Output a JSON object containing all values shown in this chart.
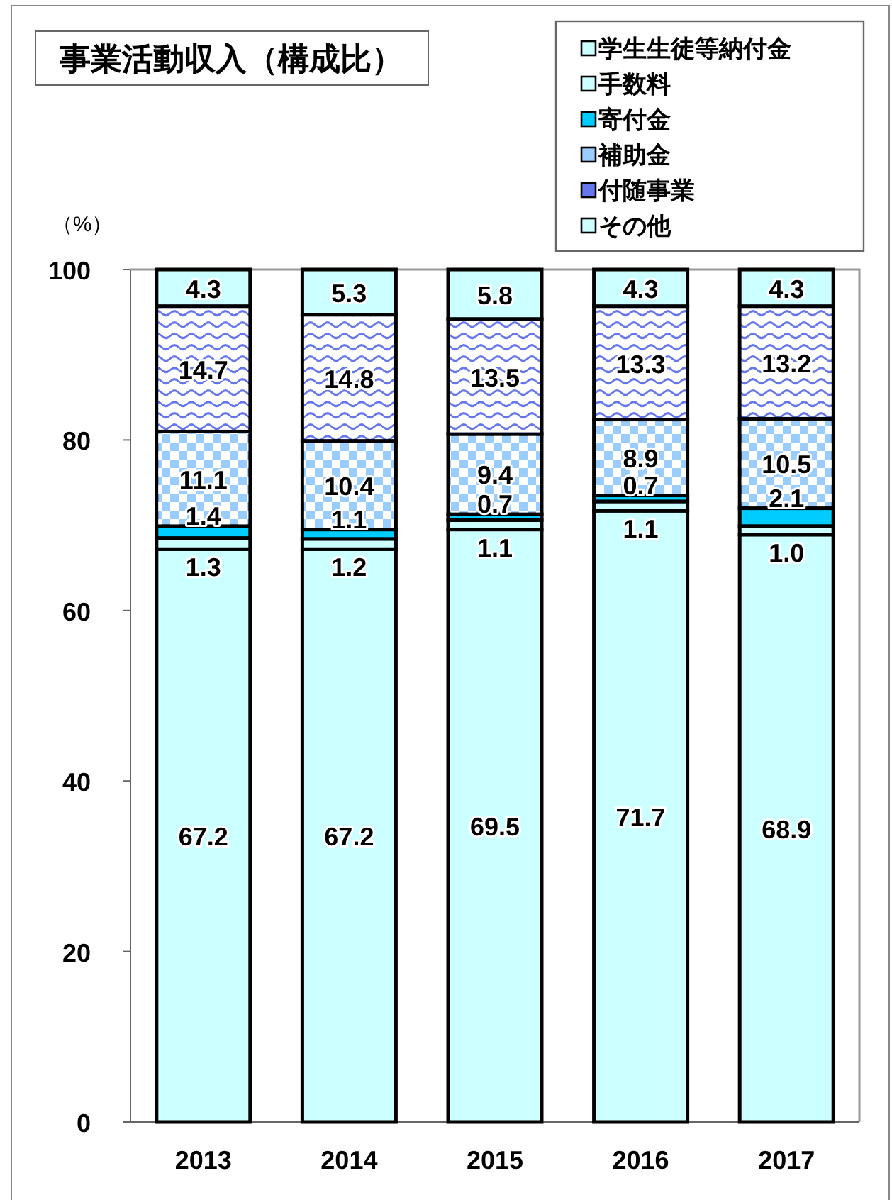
{
  "chart_data": {
    "type": "bar",
    "title": "事業活動収入（構成比）",
    "ylabel": "（%）",
    "categories": [
      "2013",
      "2014",
      "2015",
      "2016",
      "2017"
    ],
    "stacked": true,
    "ylim": [
      0,
      100
    ],
    "yticks": [
      0,
      20,
      40,
      60,
      80,
      100
    ],
    "legend": "top right",
    "series": [
      {
        "name": "学生生徒等納付金",
        "color": "#ccffff",
        "values": [
          67.2,
          67.2,
          69.5,
          71.7,
          68.9
        ],
        "value_labels": [
          "67.2",
          "67.2",
          "69.5",
          "71.7",
          "68.9"
        ]
      },
      {
        "name": "手数料",
        "color": "#ccffff",
        "values": [
          1.3,
          1.2,
          1.1,
          1.1,
          1.0
        ],
        "value_labels": [
          "1.3",
          "1.2",
          "1.1",
          "1.1",
          "1.0"
        ]
      },
      {
        "name": "寄付金",
        "color": "#00ccff",
        "values": [
          1.4,
          1.1,
          0.7,
          0.7,
          2.1
        ],
        "value_labels": [
          "1.4",
          "1.1",
          "0.7",
          "0.7",
          "2.1"
        ]
      },
      {
        "name": "補助金",
        "color": "#99ccff",
        "values": [
          11.1,
          10.4,
          9.4,
          8.9,
          10.5
        ],
        "value_labels": [
          "11.1",
          "10.4",
          "9.4",
          "8.9",
          "10.5"
        ]
      },
      {
        "name": "付随事業",
        "color": "#6677ee",
        "values": [
          14.7,
          14.8,
          13.5,
          13.3,
          13.2
        ],
        "value_labels": [
          "14.7",
          "14.8",
          "13.5",
          "13.3",
          "13.2"
        ]
      },
      {
        "name": "その他",
        "color": "#ccffff",
        "values": [
          4.3,
          5.3,
          5.8,
          4.3,
          4.3
        ],
        "value_labels": [
          "4.3",
          "5.3",
          "5.8",
          "4.3",
          "4.3"
        ]
      }
    ]
  }
}
